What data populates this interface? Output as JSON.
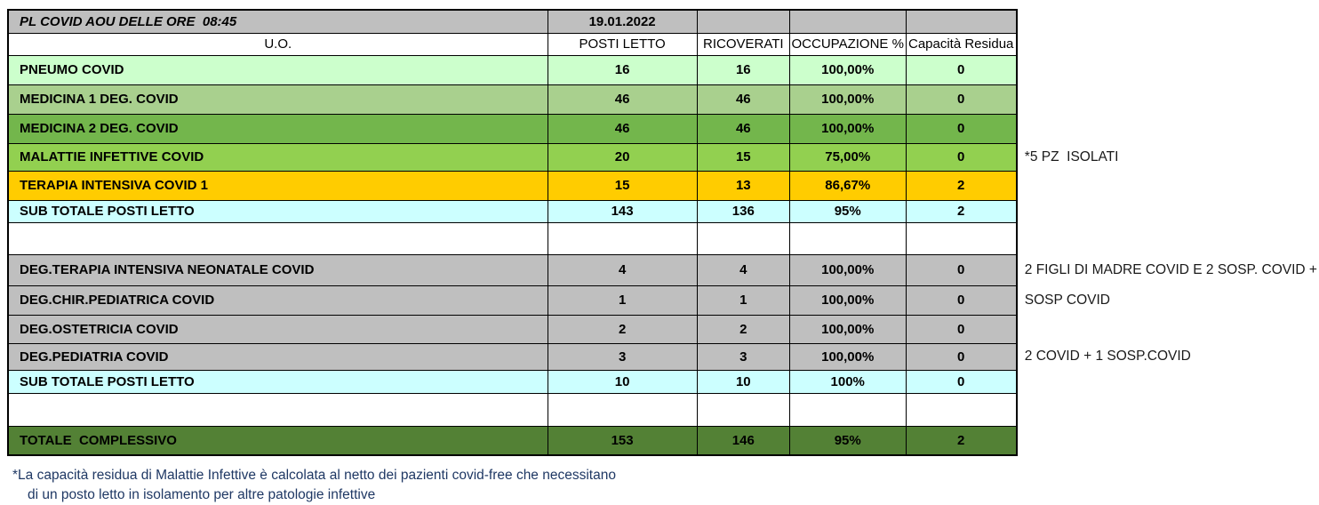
{
  "title": "PL COVID AOU DELLE ORE  08:45",
  "date": "19.01.2022",
  "columns": [
    "U.O.",
    "POSTI LETTO",
    "RICOVERATI",
    "OCCUPAZIONE %",
    "Capacità Residua"
  ],
  "rows": [
    {
      "label": "PNEUMO COVID",
      "values": [
        "16",
        "16",
        "100,00%",
        "0"
      ],
      "style": "lightgreen",
      "note": ""
    },
    {
      "label": "MEDICINA 1 DEG. COVID",
      "values": [
        "46",
        "46",
        "100,00%",
        "0"
      ],
      "style": "sage",
      "note": ""
    },
    {
      "label": "MEDICINA 2 DEG. COVID",
      "values": [
        "46",
        "46",
        "100,00%",
        "0"
      ],
      "style": "green",
      "note": ""
    },
    {
      "label": "MALATTIE INFETTIVE COVID",
      "values": [
        "20",
        "15",
        "75,00%",
        "0"
      ],
      "style": "brightgreen",
      "note": "*5 PZ  ISOLATI"
    },
    {
      "label": "TERAPIA INTENSIVA COVID 1",
      "values": [
        "15",
        "13",
        "86,67%",
        "2"
      ],
      "style": "amber",
      "note": ""
    },
    {
      "label": "SUB TOTALE POSTI LETTO",
      "values": [
        "143",
        "136",
        "95%",
        "2"
      ],
      "style": "cyan",
      "note": ""
    },
    {
      "label": "",
      "values": [
        "",
        "",
        "",
        ""
      ],
      "style": "empty",
      "note": ""
    },
    {
      "label": "DEG.TERAPIA INTENSIVA NEONATALE COVID",
      "values": [
        "4",
        "4",
        "100,00%",
        "0"
      ],
      "style": "gray",
      "note": "2 FIGLI DI MADRE COVID E 2 SOSP. COVID +"
    },
    {
      "label": "DEG.CHIR.PEDIATRICA COVID",
      "values": [
        "1",
        "1",
        "100,00%",
        "0"
      ],
      "style": "gray",
      "note": "SOSP COVID"
    },
    {
      "label": "DEG.OSTETRICIA COVID",
      "values": [
        "2",
        "2",
        "100,00%",
        "0"
      ],
      "style": "gray",
      "note": ""
    },
    {
      "label": "DEG.PEDIATRIA COVID",
      "values": [
        "3",
        "3",
        "100,00%",
        "0"
      ],
      "style": "gray",
      "note": "2 COVID + 1 SOSP.COVID"
    },
    {
      "label": "SUB TOTALE POSTI LETTO",
      "values": [
        "10",
        "10",
        "100%",
        "0"
      ],
      "style": "cyan",
      "note": ""
    },
    {
      "label": "",
      "values": [
        "",
        "",
        "",
        ""
      ],
      "style": "empty",
      "note": ""
    },
    {
      "label": "TOTALE  COMPLESSIVO",
      "values": [
        "153",
        "146",
        "95%",
        "2"
      ],
      "style": "darkgreen",
      "note": ""
    }
  ],
  "footer": {
    "line1": "*La capacità residua di Malattie Infettive è calcolata al netto dei pazienti covid-free che necessitano",
    "line2": "di un posto letto in isolamento per altre patologie infettive"
  },
  "colors": {
    "gray": "#BFBFBF",
    "lightgreen": "#CCFFCC",
    "sage": "#A9D08E",
    "green": "#73B64C",
    "brightgreen": "#92D050",
    "amber": "#FFCC00",
    "cyan": "#CCFFFF",
    "darkgreen": "#538135",
    "footnavy": "#1F3864"
  }
}
